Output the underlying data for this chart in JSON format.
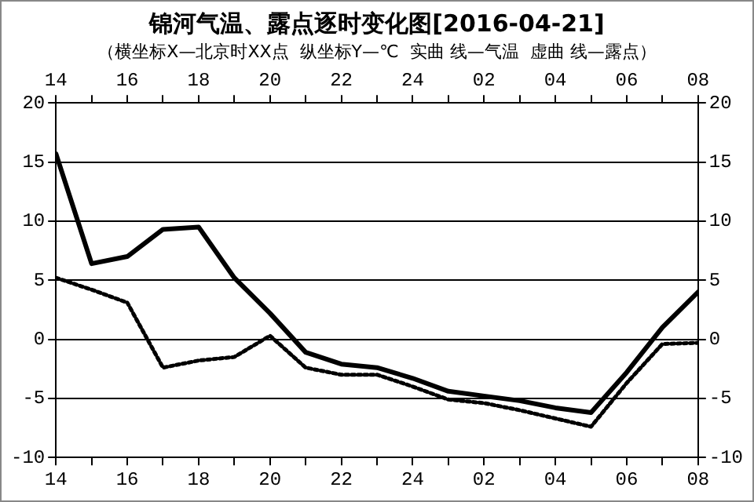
{
  "chart_data": {
    "type": "line",
    "title": "锦河气温、露点逐时变化图[2016-04-21]",
    "subtitle": "（横坐标X—北京时XX点  纵坐标Y—℃  实曲 线—气温  虚曲 线—露点）",
    "x": [
      "2016-04-20T14:00",
      "2016-04-20T15:00",
      "2016-04-20T16:00",
      "2016-04-20T17:00",
      "2016-04-20T18:00",
      "2016-04-20T19:00",
      "2016-04-20T20:00",
      "2016-04-20T21:00",
      "2016-04-20T22:00",
      "2016-04-20T23:00",
      "2016-04-21T00:00",
      "2016-04-21T01:00",
      "2016-04-21T02:00",
      "2016-04-21T03:00",
      "2016-04-21T04:00",
      "2016-04-21T05:00",
      "2016-04-21T06:00",
      "2016-04-21T07:00",
      "2016-04-21T08:00"
    ],
    "series": [
      {
        "color": "#000000",
        "line_style": "solid",
        "values": [
          15.7,
          6.4,
          7.0,
          9.3,
          9.5,
          5.2,
          2.2,
          -1.1,
          -2.1,
          -2.4,
          -3.3,
          -4.4,
          -4.8,
          -5.2,
          -5.8,
          -6.2,
          -2.8,
          1.0,
          4.0
        ]
      },
      {
        "color": "#000000",
        "line_style": "dotted",
        "values": [
          5.2,
          4.2,
          3.1,
          -2.4,
          -1.8,
          -1.5,
          0.3,
          -2.4,
          -3.0,
          -3.0,
          -4.0,
          -5.1,
          -5.4,
          -6.0,
          -6.7,
          -7.4,
          -3.7,
          -0.4,
          -0.3
        ]
      }
    ],
    "xlim": [
      "2016-04-20T14:00",
      "2016-04-21T08:00"
    ],
    "xticks": [
      {
        "value": "2016-04-20T14:00",
        "label": "14"
      },
      {
        "value": "2016-04-20T15:00",
        "label": null
      },
      {
        "value": "2016-04-20T16:00",
        "label": "16"
      },
      {
        "value": "2016-04-20T17:00",
        "label": null
      },
      {
        "value": "2016-04-20T18:00",
        "label": "18"
      },
      {
        "value": "2016-04-20T19:00",
        "label": null
      },
      {
        "value": "2016-04-20T20:00",
        "label": "20"
      },
      {
        "value": "2016-04-20T21:00",
        "label": null
      },
      {
        "value": "2016-04-20T22:00",
        "label": "22"
      },
      {
        "value": "2016-04-20T23:00",
        "label": null
      },
      {
        "value": "2016-04-21T00:00",
        "label": "24"
      },
      {
        "value": "2016-04-21T01:00",
        "label": null
      },
      {
        "value": "2016-04-21T02:00",
        "label": "02"
      },
      {
        "value": "2016-04-21T03:00",
        "label": null
      },
      {
        "value": "2016-04-21T04:00",
        "label": "04"
      },
      {
        "value": "2016-04-21T05:00",
        "label": null
      },
      {
        "value": "2016-04-21T06:00",
        "label": "06"
      },
      {
        "value": "2016-04-21T07:00",
        "label": null
      },
      {
        "value": "2016-04-21T08:00",
        "label": "08"
      }
    ],
    "x2lim": [
      "2016-04-20T14:00",
      "2016-04-21T08:00"
    ],
    "x2ticks": [
      {
        "value": "2016-04-20T14:00",
        "label": "14"
      },
      {
        "value": "2016-04-20T15:00",
        "label": null
      },
      {
        "value": "2016-04-20T16:00",
        "label": "16"
      },
      {
        "value": "2016-04-20T17:00",
        "label": null
      },
      {
        "value": "2016-04-20T18:00",
        "label": "18"
      },
      {
        "value": "2016-04-20T19:00",
        "label": null
      },
      {
        "value": "2016-04-20T20:00",
        "label": "20"
      },
      {
        "value": "2016-04-20T21:00",
        "label": null
      },
      {
        "value": "2016-04-20T22:00",
        "label": "22"
      },
      {
        "value": "2016-04-20T23:00",
        "label": null
      },
      {
        "value": "2016-04-21T00:00",
        "label": "24"
      },
      {
        "value": "2016-04-21T01:00",
        "label": null
      },
      {
        "value": "2016-04-21T02:00",
        "label": "02"
      },
      {
        "value": "2016-04-21T03:00",
        "label": null
      },
      {
        "value": "2016-04-21T04:00",
        "label": "04"
      },
      {
        "value": "2016-04-21T05:00",
        "label": null
      },
      {
        "value": "2016-04-21T06:00",
        "label": "06"
      },
      {
        "value": "2016-04-21T07:00",
        "label": null
      },
      {
        "value": "2016-04-21T08:00",
        "label": "08"
      }
    ],
    "ylim": [
      -10,
      20
    ],
    "yticks": [
      -10,
      -5,
      0,
      5,
      10,
      15,
      20
    ],
    "y2lim": [
      -10,
      20
    ],
    "y2ticks": [
      -10,
      -5,
      0,
      5,
      10,
      15,
      20
    ],
    "grid": "y"
  }
}
